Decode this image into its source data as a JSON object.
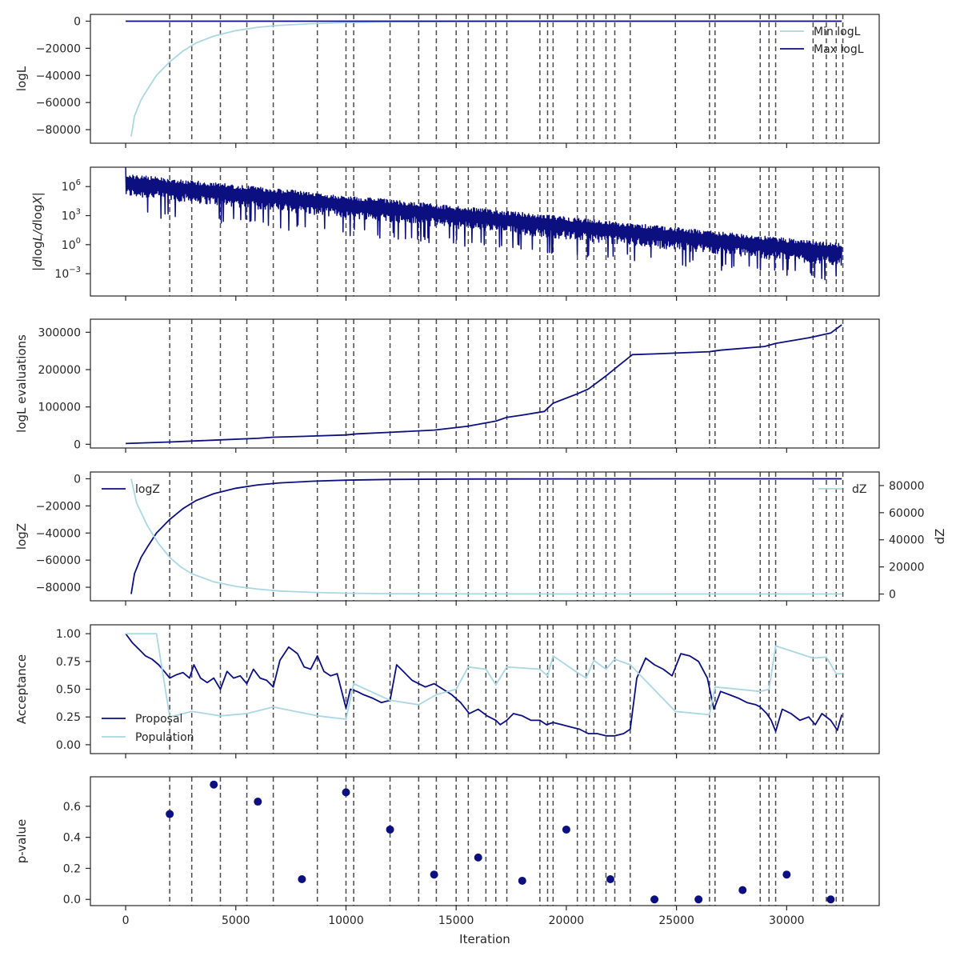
{
  "colors": {
    "navy": "#0b0f80",
    "light": "#a9d7e3",
    "vline": "#4a4a4a",
    "spine": "#262626"
  },
  "vlines": [
    2000,
    3000,
    4300,
    5500,
    6700,
    8700,
    10000,
    10350,
    12000,
    13300,
    14100,
    15000,
    15550,
    16350,
    16800,
    17300,
    18800,
    19150,
    19400,
    20500,
    20900,
    21250,
    21800,
    22200,
    22900,
    24950,
    26500,
    26750,
    28800,
    29200,
    29500,
    31200,
    31800,
    32250,
    32550
  ],
  "xaxis": {
    "label": "Iteration",
    "ticks": [
      0,
      5000,
      10000,
      15000,
      20000,
      25000,
      30000
    ],
    "tick_labels": [
      "0",
      "5000",
      "10000",
      "15000",
      "20000",
      "25000",
      "30000"
    ],
    "xlim": [
      -1600,
      34200
    ]
  },
  "chart_data": [
    {
      "type": "line",
      "ylabel": "logL",
      "ylim": [
        -90000,
        5000
      ],
      "yticks": [
        0,
        -20000,
        -40000,
        -60000,
        -80000
      ],
      "ytick_labels": [
        "0",
        "−20000",
        "−40000",
        "−60000",
        "−80000"
      ],
      "legend": "top-right",
      "series": [
        {
          "name": "Min logL",
          "color": "light",
          "x": [
            250,
            400,
            700,
            1000,
            1400,
            2000,
            2600,
            3200,
            4000,
            5000,
            6000,
            7000,
            8500,
            10000,
            12000,
            15000,
            20000,
            25000,
            30000,
            32500
          ],
          "y": [
            -85000,
            -70000,
            -58000,
            -50000,
            -40000,
            -30000,
            -22000,
            -16000,
            -11000,
            -7000,
            -4500,
            -3000,
            -1800,
            -1000,
            -500,
            -200,
            -50,
            -20,
            -5,
            0
          ]
        },
        {
          "name": "Max logL",
          "color": "navy",
          "x": [
            0,
            32500
          ],
          "y": [
            0,
            0
          ]
        }
      ]
    },
    {
      "type": "line",
      "ylabel": "|dlogL/dlogX|",
      "yscale": "log",
      "ylim": [
        5e-06,
        100000000
      ],
      "yticks": [
        1000000,
        1000,
        1,
        0.001
      ],
      "ytick_labels": [
        "10^6",
        "10^3",
        "10^0",
        "10^−3"
      ],
      "series": [
        {
          "name": "",
          "color": "navy",
          "x": [
            0,
            32500
          ],
          "upper_log10": [
            7.3,
            0.1
          ],
          "lower_log10": [
            5.0,
            -2.2
          ],
          "dip_log10": [
            3.8,
            -3.0
          ]
        }
      ]
    },
    {
      "type": "line",
      "ylabel": "logL evaluations",
      "ylim": [
        -10000,
        335000
      ],
      "yticks": [
        0,
        100000,
        200000,
        300000
      ],
      "ytick_labels": [
        "0",
        "100000",
        "200000",
        "300000"
      ],
      "series": [
        {
          "name": "",
          "color": "navy",
          "x": [
            0,
            2000,
            4000,
            6000,
            6700,
            8000,
            10000,
            10500,
            12000,
            14000,
            15500,
            16800,
            17300,
            18000,
            19000,
            19400,
            20500,
            21000,
            21800,
            22300,
            23000,
            24000,
            26500,
            27000,
            29000,
            29500,
            31000,
            32000,
            32500
          ],
          "y": [
            2000,
            6000,
            11000,
            16000,
            19000,
            21000,
            25000,
            28000,
            32000,
            38000,
            48000,
            62000,
            72000,
            78000,
            88000,
            110000,
            135000,
            148000,
            183000,
            207000,
            240000,
            242000,
            248000,
            252000,
            262000,
            270000,
            285000,
            298000,
            320000
          ]
        }
      ]
    },
    {
      "type": "line",
      "ylabel": "logZ",
      "ylabel_right": "dZ",
      "ylim": [
        -90000,
        5000
      ],
      "yticks": [
        0,
        -20000,
        -40000,
        -60000,
        -80000
      ],
      "ytick_labels": [
        "0",
        "−20000",
        "−40000",
        "−60000",
        "−80000"
      ],
      "ylim_right": [
        -5000,
        90000
      ],
      "yticks_right": [
        0,
        20000,
        40000,
        60000,
        80000
      ],
      "ytick_labels_right": [
        "0",
        "20000",
        "40000",
        "60000",
        "80000"
      ],
      "series": [
        {
          "name": "logZ",
          "color": "navy",
          "axis": "left",
          "legend": "top-left",
          "x": [
            250,
            400,
            700,
            1000,
            1400,
            2000,
            2600,
            3200,
            4000,
            5000,
            6000,
            7000,
            8500,
            10000,
            12000,
            15000,
            20000,
            25000,
            30000,
            32500
          ],
          "y": [
            -85000,
            -70000,
            -58000,
            -50000,
            -40000,
            -30000,
            -22000,
            -16000,
            -11000,
            -7000,
            -4500,
            -3000,
            -1800,
            -1000,
            -500,
            -200,
            -50,
            -20,
            -5,
            0
          ]
        },
        {
          "name": "dZ",
          "color": "light",
          "axis": "right",
          "legend": "top-right",
          "x": [
            250,
            500,
            1000,
            1500,
            2000,
            2500,
            3000,
            4000,
            5000,
            6000,
            7000,
            8500,
            10000,
            12000,
            15000,
            20000,
            25000,
            30000,
            32500
          ],
          "y": [
            85000,
            67000,
            50000,
            37000,
            27000,
            20000,
            15000,
            9000,
            5600,
            3600,
            2200,
            1200,
            600,
            280,
            100,
            30,
            10,
            3,
            0
          ]
        }
      ]
    },
    {
      "type": "line",
      "ylabel": "Acceptance",
      "ylim": [
        -0.08,
        1.08
      ],
      "yticks": [
        0,
        0.25,
        0.5,
        0.75,
        1.0
      ],
      "ytick_labels": [
        "0.00",
        "0.25",
        "0.50",
        "0.75",
        "1.00"
      ],
      "legend": "bottom-left",
      "series": [
        {
          "name": "Proposal",
          "color": "navy",
          "x": [
            0,
            300,
            600,
            900,
            1200,
            1500,
            1800,
            2000,
            2300,
            2600,
            2900,
            3100,
            3400,
            3700,
            4000,
            4300,
            4600,
            4900,
            5200,
            5500,
            5800,
            6100,
            6400,
            6700,
            7000,
            7400,
            7800,
            8100,
            8400,
            8700,
            9000,
            9300,
            9600,
            10000,
            10200,
            10500,
            10800,
            11200,
            11600,
            12000,
            12300,
            12600,
            13000,
            13300,
            13600,
            14000,
            14400,
            14800,
            15200,
            15600,
            16000,
            16400,
            16800,
            17000,
            17300,
            17600,
            18000,
            18400,
            18800,
            19100,
            19400,
            19800,
            20200,
            20600,
            21000,
            21400,
            21800,
            22200,
            22600,
            22900,
            23200,
            23600,
            24000,
            24400,
            24800,
            25200,
            25600,
            26000,
            26400,
            26700,
            27000,
            27400,
            27800,
            28200,
            28600,
            28800,
            29100,
            29300,
            29500,
            29800,
            30200,
            30600,
            31000,
            31300,
            31600,
            32000,
            32300,
            32500
          ],
          "y": [
            1.0,
            0.92,
            0.86,
            0.8,
            0.77,
            0.72,
            0.65,
            0.6,
            0.63,
            0.65,
            0.6,
            0.72,
            0.6,
            0.56,
            0.6,
            0.5,
            0.66,
            0.6,
            0.62,
            0.55,
            0.68,
            0.6,
            0.58,
            0.52,
            0.76,
            0.88,
            0.82,
            0.7,
            0.68,
            0.8,
            0.66,
            0.62,
            0.64,
            0.33,
            0.5,
            0.48,
            0.45,
            0.42,
            0.38,
            0.4,
            0.72,
            0.66,
            0.58,
            0.55,
            0.52,
            0.55,
            0.5,
            0.45,
            0.38,
            0.28,
            0.32,
            0.26,
            0.22,
            0.18,
            0.22,
            0.28,
            0.26,
            0.22,
            0.22,
            0.18,
            0.2,
            0.18,
            0.16,
            0.14,
            0.1,
            0.1,
            0.08,
            0.08,
            0.1,
            0.14,
            0.6,
            0.78,
            0.72,
            0.68,
            0.62,
            0.82,
            0.8,
            0.75,
            0.6,
            0.32,
            0.48,
            0.45,
            0.42,
            0.38,
            0.36,
            0.34,
            0.28,
            0.22,
            0.12,
            0.32,
            0.28,
            0.22,
            0.25,
            0.18,
            0.28,
            0.22,
            0.13,
            0.27
          ]
        },
        {
          "name": "Population",
          "color": "light",
          "x": [
            0,
            1400,
            2000,
            3000,
            4300,
            5500,
            6700,
            8700,
            10000,
            10350,
            12000,
            13300,
            14100,
            15000,
            15550,
            16350,
            16800,
            17300,
            18800,
            19150,
            19400,
            20500,
            20900,
            21250,
            21800,
            22200,
            22900,
            24950,
            26500,
            26750,
            28800,
            29200,
            29500,
            31200,
            31800,
            32250,
            32550
          ],
          "y": [
            1.0,
            1.0,
            0.25,
            0.3,
            0.26,
            0.28,
            0.34,
            0.26,
            0.23,
            0.55,
            0.4,
            0.36,
            0.45,
            0.5,
            0.7,
            0.68,
            0.54,
            0.7,
            0.68,
            0.62,
            0.8,
            0.65,
            0.6,
            0.76,
            0.68,
            0.77,
            0.72,
            0.3,
            0.27,
            0.52,
            0.48,
            0.5,
            0.89,
            0.78,
            0.79,
            0.64,
            0.64
          ]
        }
      ]
    },
    {
      "type": "scatter",
      "ylabel": "p-value",
      "ylim": [
        -0.04,
        0.79
      ],
      "yticks": [
        0,
        0.2,
        0.4,
        0.6
      ],
      "ytick_labels": [
        "0.0",
        "0.2",
        "0.4",
        "0.6"
      ],
      "series": [
        {
          "name": "",
          "color": "navy",
          "x": [
            2000,
            4000,
            6000,
            8000,
            10000,
            12000,
            14000,
            16000,
            18000,
            20000,
            22000,
            24000,
            26000,
            28000,
            30000,
            32000
          ],
          "y": [
            0.55,
            0.74,
            0.63,
            0.13,
            0.69,
            0.45,
            0.16,
            0.27,
            0.12,
            0.45,
            0.13,
            0.0,
            0.0,
            0.06,
            0.16,
            0.0
          ]
        }
      ]
    }
  ]
}
